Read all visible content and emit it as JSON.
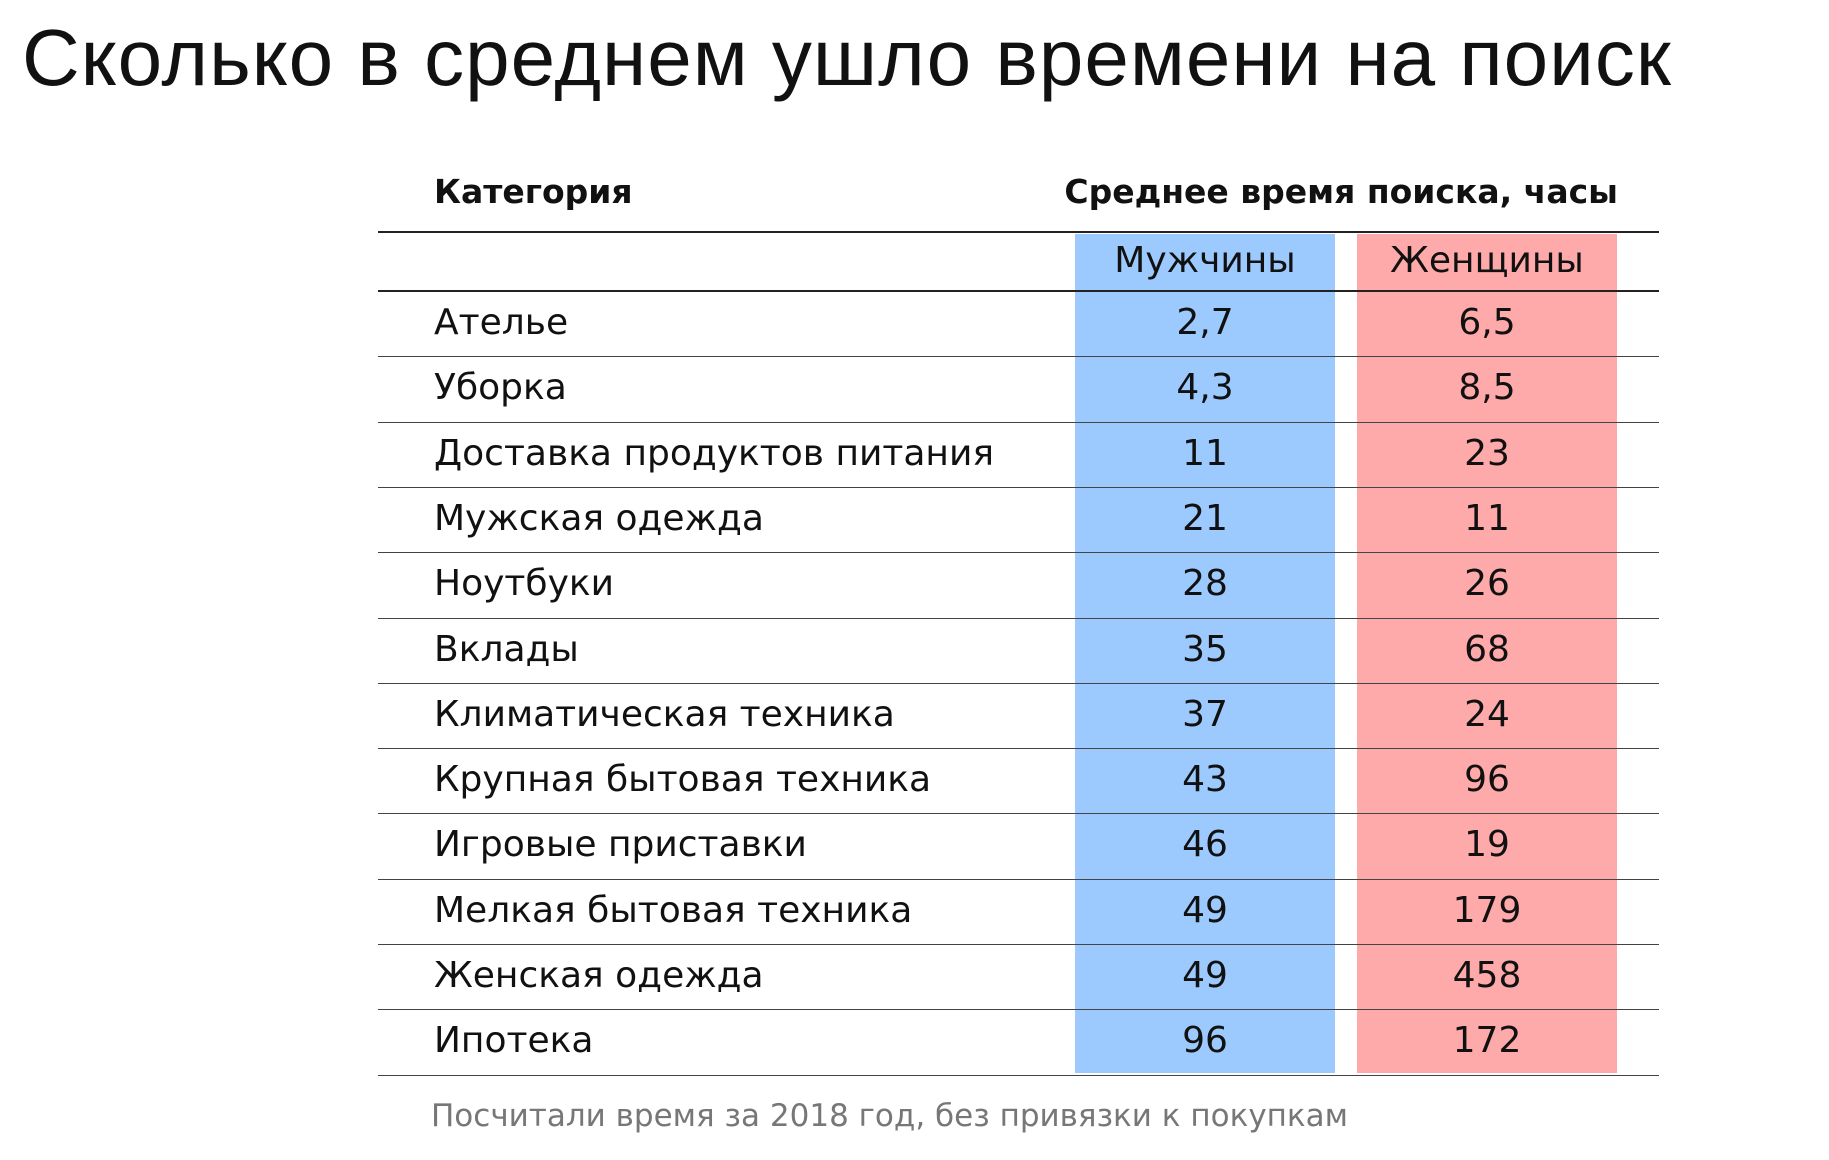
{
  "title": "Сколько в среднем ушло времени на поиск",
  "table": {
    "header": [
      "Категория",
      "Среднее время поиска, часы"
    ],
    "subheader": [
      "Мужчины",
      "Женщины"
    ],
    "rows": [
      [
        "Ателье",
        "2,7",
        "6,5"
      ],
      [
        "Уборка",
        "4,3",
        "8,5"
      ],
      [
        "Доставка продуктов питания",
        "11",
        "23"
      ],
      [
        "Мужская одежда",
        "21",
        "11"
      ],
      [
        "Ноутбуки",
        "28",
        "26"
      ],
      [
        "Вклады",
        "35",
        "68"
      ],
      [
        "Климатическая техника",
        "37",
        "24"
      ],
      [
        "Крупная бытовая техника",
        "43",
        "96"
      ],
      [
        "Игровые приставки",
        "46",
        "19"
      ],
      [
        "Мелкая бытовая техника",
        "49",
        "179"
      ],
      [
        "Женская одежда",
        "49",
        "458"
      ],
      [
        "Ипотека",
        "96",
        "172"
      ]
    ]
  },
  "footnote": "Посчитали время за 2018 год, без привязки к покупкам"
}
